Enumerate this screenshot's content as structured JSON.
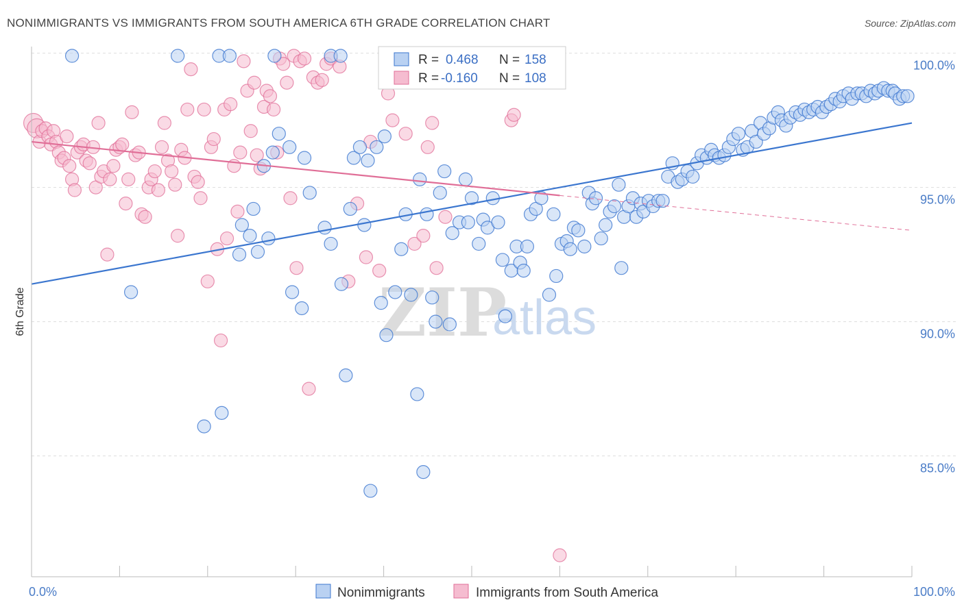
{
  "title": "NONIMMIGRANTS VS IMMIGRANTS FROM SOUTH AMERICA 6TH GRADE CORRELATION CHART",
  "source": "Source: ZipAtlas.com",
  "watermark": {
    "zip": "ZIP",
    "atlas": "atlas"
  },
  "colors": {
    "blue": "#3b76cf",
    "blue_fill": "#b9d1f2",
    "pink": "#e06e97",
    "pink_fill": "#f5bcd0",
    "grid": "#dddddd",
    "axis_text": "#4a7cc7"
  },
  "legend": {
    "r_label": "R =",
    "n_label": "N =",
    "series": [
      {
        "r": "0.468",
        "n": "158"
      },
      {
        "r": "-0.160",
        "n": "108"
      }
    ]
  },
  "bottom_legend": [
    "Nonimmigrants",
    "Immigrants from South America"
  ],
  "chart_data": {
    "type": "scatter",
    "title": "NONIMMIGRANTS VS IMMIGRANTS FROM SOUTH AMERICA 6TH GRADE CORRELATION CHART",
    "xlabel": "",
    "ylabel": "6th Grade",
    "xlim": [
      0,
      100
    ],
    "ylim": [
      80.5,
      100.5
    ],
    "x_tick_labels": [
      "0.0%",
      "100.0%"
    ],
    "y_ticks": [
      85,
      90,
      95,
      100
    ],
    "y_tick_labels": [
      "85.0%",
      "90.0%",
      "95.0%",
      "100.0%"
    ],
    "grid": true,
    "legend_position": "top-center",
    "series": [
      {
        "name": "Nonimmigrants",
        "r": 0.468,
        "n": 158,
        "trend": {
          "x": [
            0,
            100
          ],
          "y": [
            91.4,
            97.4
          ]
        },
        "points": [
          [
            4.6,
            99.9
          ],
          [
            16.6,
            99.9
          ],
          [
            21.3,
            99.9
          ],
          [
            22.5,
            99.9
          ],
          [
            27.6,
            99.9
          ],
          [
            34.0,
            99.9
          ],
          [
            35.1,
            99.9
          ],
          [
            11.3,
            91.1
          ],
          [
            19.6,
            86.1
          ],
          [
            21.6,
            86.6
          ],
          [
            23.6,
            92.5
          ],
          [
            23.9,
            93.6
          ],
          [
            24.8,
            93.2
          ],
          [
            25.2,
            94.2
          ],
          [
            25.7,
            92.6
          ],
          [
            26.4,
            95.8
          ],
          [
            26.9,
            93.1
          ],
          [
            27.4,
            96.3
          ],
          [
            28.1,
            97.0
          ],
          [
            29.3,
            96.5
          ],
          [
            29.6,
            91.1
          ],
          [
            30.7,
            90.5
          ],
          [
            31.0,
            96.1
          ],
          [
            31.6,
            94.8
          ],
          [
            33.3,
            93.5
          ],
          [
            34.0,
            92.9
          ],
          [
            35.2,
            91.4
          ],
          [
            35.7,
            88.0
          ],
          [
            36.2,
            94.2
          ],
          [
            36.6,
            96.1
          ],
          [
            37.3,
            96.5
          ],
          [
            37.8,
            93.6
          ],
          [
            38.2,
            96.0
          ],
          [
            39.2,
            96.5
          ],
          [
            39.7,
            90.7
          ],
          [
            40.1,
            96.9
          ],
          [
            40.3,
            89.5
          ],
          [
            41.3,
            91.1
          ],
          [
            42.0,
            92.7
          ],
          [
            42.5,
            94.0
          ],
          [
            43.1,
            91.0
          ],
          [
            43.8,
            87.3
          ],
          [
            44.1,
            95.3
          ],
          [
            44.5,
            84.4
          ],
          [
            44.9,
            94.0
          ],
          [
            45.5,
            90.9
          ],
          [
            45.9,
            90.0
          ],
          [
            46.4,
            94.8
          ],
          [
            46.9,
            95.6
          ],
          [
            47.5,
            89.9
          ],
          [
            47.8,
            93.3
          ],
          [
            48.6,
            93.7
          ],
          [
            49.3,
            95.3
          ],
          [
            49.6,
            93.7
          ],
          [
            50.0,
            94.6
          ],
          [
            50.8,
            92.9
          ],
          [
            51.3,
            93.8
          ],
          [
            51.8,
            93.5
          ],
          [
            52.4,
            94.6
          ],
          [
            53.0,
            93.7
          ],
          [
            53.5,
            92.3
          ],
          [
            53.8,
            90.2
          ],
          [
            54.5,
            91.9
          ],
          [
            55.1,
            92.8
          ],
          [
            55.5,
            92.2
          ],
          [
            55.9,
            91.9
          ],
          [
            56.3,
            92.8
          ],
          [
            56.7,
            94.0
          ],
          [
            57.3,
            94.2
          ],
          [
            57.9,
            94.6
          ],
          [
            58.8,
            91.0
          ],
          [
            59.3,
            94.0
          ],
          [
            59.6,
            91.7
          ],
          [
            60.2,
            92.9
          ],
          [
            60.8,
            93.0
          ],
          [
            61.2,
            92.7
          ],
          [
            61.6,
            93.5
          ],
          [
            62.1,
            93.4
          ],
          [
            62.8,
            92.8
          ],
          [
            63.3,
            94.8
          ],
          [
            63.7,
            94.4
          ],
          [
            64.1,
            94.6
          ],
          [
            64.7,
            93.1
          ],
          [
            65.2,
            93.6
          ],
          [
            65.7,
            94.1
          ],
          [
            66.2,
            94.3
          ],
          [
            66.7,
            95.1
          ],
          [
            67.3,
            93.9
          ],
          [
            67.8,
            94.3
          ],
          [
            68.3,
            94.6
          ],
          [
            68.7,
            93.9
          ],
          [
            69.2,
            94.4
          ],
          [
            69.5,
            94.1
          ],
          [
            70.1,
            94.5
          ],
          [
            70.6,
            94.3
          ],
          [
            71.2,
            94.5
          ],
          [
            71.7,
            94.5
          ],
          [
            72.3,
            95.4
          ],
          [
            72.8,
            95.9
          ],
          [
            73.4,
            95.2
          ],
          [
            73.9,
            95.3
          ],
          [
            74.5,
            95.6
          ],
          [
            75.1,
            95.4
          ],
          [
            75.6,
            95.9
          ],
          [
            76.1,
            96.2
          ],
          [
            76.7,
            96.1
          ],
          [
            77.2,
            96.4
          ],
          [
            77.6,
            96.2
          ],
          [
            78.1,
            96.1
          ],
          [
            78.7,
            96.2
          ],
          [
            79.2,
            96.5
          ],
          [
            79.7,
            96.8
          ],
          [
            80.3,
            97.0
          ],
          [
            80.8,
            96.4
          ],
          [
            81.3,
            96.5
          ],
          [
            81.8,
            97.1
          ],
          [
            82.3,
            96.7
          ],
          [
            82.8,
            97.4
          ],
          [
            83.2,
            97.0
          ],
          [
            83.8,
            97.2
          ],
          [
            84.3,
            97.6
          ],
          [
            84.8,
            97.8
          ],
          [
            85.2,
            97.5
          ],
          [
            85.7,
            97.3
          ],
          [
            86.2,
            97.6
          ],
          [
            86.8,
            97.8
          ],
          [
            87.3,
            97.7
          ],
          [
            87.8,
            97.9
          ],
          [
            88.3,
            97.8
          ],
          [
            88.8,
            97.9
          ],
          [
            89.3,
            98.0
          ],
          [
            89.8,
            97.8
          ],
          [
            90.3,
            98.0
          ],
          [
            90.8,
            98.1
          ],
          [
            91.3,
            98.3
          ],
          [
            91.8,
            98.2
          ],
          [
            92.2,
            98.4
          ],
          [
            92.8,
            98.5
          ],
          [
            93.2,
            98.3
          ],
          [
            93.8,
            98.5
          ],
          [
            94.3,
            98.5
          ],
          [
            94.8,
            98.4
          ],
          [
            95.3,
            98.6
          ],
          [
            95.8,
            98.5
          ],
          [
            96.2,
            98.6
          ],
          [
            96.8,
            98.7
          ],
          [
            97.3,
            98.6
          ],
          [
            97.8,
            98.6
          ],
          [
            98.1,
            98.5
          ],
          [
            98.6,
            98.3
          ],
          [
            99.0,
            98.4
          ],
          [
            99.5,
            98.4
          ],
          [
            38.5,
            83.7
          ],
          [
            67.0,
            92.0
          ]
        ]
      },
      {
        "name": "Immigrants from South America",
        "r": -0.16,
        "n": 108,
        "trend": {
          "x": [
            0,
            60
          ],
          "y": [
            96.7,
            94.7
          ]
        },
        "trend_extension": {
          "x": [
            60,
            100
          ],
          "y": [
            94.7,
            93.4
          ]
        },
        "points": [
          [
            0.2,
            97.4
          ],
          [
            0.6,
            97.2
          ],
          [
            0.9,
            96.7
          ],
          [
            1.2,
            97.1
          ],
          [
            1.6,
            97.2
          ],
          [
            1.9,
            96.9
          ],
          [
            2.2,
            96.6
          ],
          [
            2.5,
            97.1
          ],
          [
            2.8,
            96.7
          ],
          [
            3.1,
            96.3
          ],
          [
            3.4,
            96.0
          ],
          [
            3.7,
            96.1
          ],
          [
            4.0,
            96.9
          ],
          [
            4.3,
            95.8
          ],
          [
            4.6,
            95.3
          ],
          [
            4.9,
            94.9
          ],
          [
            5.2,
            96.3
          ],
          [
            5.6,
            96.5
          ],
          [
            5.9,
            96.6
          ],
          [
            6.2,
            96.0
          ],
          [
            6.6,
            95.9
          ],
          [
            7.0,
            96.5
          ],
          [
            7.3,
            95.0
          ],
          [
            7.6,
            97.4
          ],
          [
            7.9,
            95.4
          ],
          [
            8.2,
            95.6
          ],
          [
            8.6,
            92.5
          ],
          [
            8.9,
            95.3
          ],
          [
            9.3,
            95.8
          ],
          [
            9.6,
            96.4
          ],
          [
            10.0,
            96.5
          ],
          [
            10.3,
            96.6
          ],
          [
            10.7,
            94.4
          ],
          [
            11.0,
            95.3
          ],
          [
            11.4,
            97.8
          ],
          [
            11.8,
            96.2
          ],
          [
            12.2,
            96.3
          ],
          [
            12.5,
            94.0
          ],
          [
            12.9,
            93.9
          ],
          [
            13.3,
            95.0
          ],
          [
            13.6,
            95.3
          ],
          [
            14.0,
            95.6
          ],
          [
            14.4,
            94.9
          ],
          [
            14.8,
            96.5
          ],
          [
            15.1,
            97.4
          ],
          [
            15.5,
            96.0
          ],
          [
            15.9,
            95.6
          ],
          [
            16.3,
            95.1
          ],
          [
            16.6,
            93.2
          ],
          [
            17.0,
            96.4
          ],
          [
            17.4,
            96.1
          ],
          [
            17.7,
            97.9
          ],
          [
            18.1,
            99.4
          ],
          [
            18.5,
            95.4
          ],
          [
            18.9,
            95.2
          ],
          [
            19.2,
            94.6
          ],
          [
            19.6,
            97.9
          ],
          [
            20.0,
            91.5
          ],
          [
            20.4,
            96.5
          ],
          [
            20.7,
            96.8
          ],
          [
            21.1,
            92.7
          ],
          [
            21.5,
            89.3
          ],
          [
            21.9,
            97.9
          ],
          [
            22.2,
            93.1
          ],
          [
            22.6,
            98.1
          ],
          [
            23.0,
            95.8
          ],
          [
            23.4,
            94.1
          ],
          [
            23.7,
            96.3
          ],
          [
            24.1,
            99.7
          ],
          [
            24.5,
            98.6
          ],
          [
            24.9,
            97.1
          ],
          [
            25.3,
            98.9
          ],
          [
            25.6,
            96.2
          ],
          [
            26.0,
            95.7
          ],
          [
            26.4,
            98.0
          ],
          [
            26.7,
            98.6
          ],
          [
            27.1,
            98.4
          ],
          [
            27.5,
            97.9
          ],
          [
            27.9,
            96.3
          ],
          [
            28.2,
            99.8
          ],
          [
            28.6,
            99.6
          ],
          [
            29.0,
            98.9
          ],
          [
            29.4,
            94.6
          ],
          [
            29.8,
            99.9
          ],
          [
            30.1,
            92.0
          ],
          [
            30.5,
            99.7
          ],
          [
            31.0,
            99.8
          ],
          [
            31.5,
            87.5
          ],
          [
            32.0,
            99.1
          ],
          [
            32.5,
            98.9
          ],
          [
            33.0,
            99.0
          ],
          [
            33.5,
            99.6
          ],
          [
            34.0,
            99.8
          ],
          [
            35.0,
            99.5
          ],
          [
            36.0,
            91.5
          ],
          [
            37.0,
            94.4
          ],
          [
            38.0,
            92.4
          ],
          [
            38.5,
            96.7
          ],
          [
            39.5,
            91.9
          ],
          [
            40.5,
            98.5
          ],
          [
            41.0,
            97.5
          ],
          [
            42.5,
            97.0
          ],
          [
            43.5,
            92.9
          ],
          [
            44.5,
            93.2
          ],
          [
            45.0,
            96.5
          ],
          [
            45.5,
            97.4
          ],
          [
            46.0,
            92.0
          ],
          [
            47.0,
            93.9
          ],
          [
            60.0,
            81.3
          ],
          [
            54.5,
            97.5
          ],
          [
            54.8,
            97.7
          ]
        ]
      }
    ]
  }
}
